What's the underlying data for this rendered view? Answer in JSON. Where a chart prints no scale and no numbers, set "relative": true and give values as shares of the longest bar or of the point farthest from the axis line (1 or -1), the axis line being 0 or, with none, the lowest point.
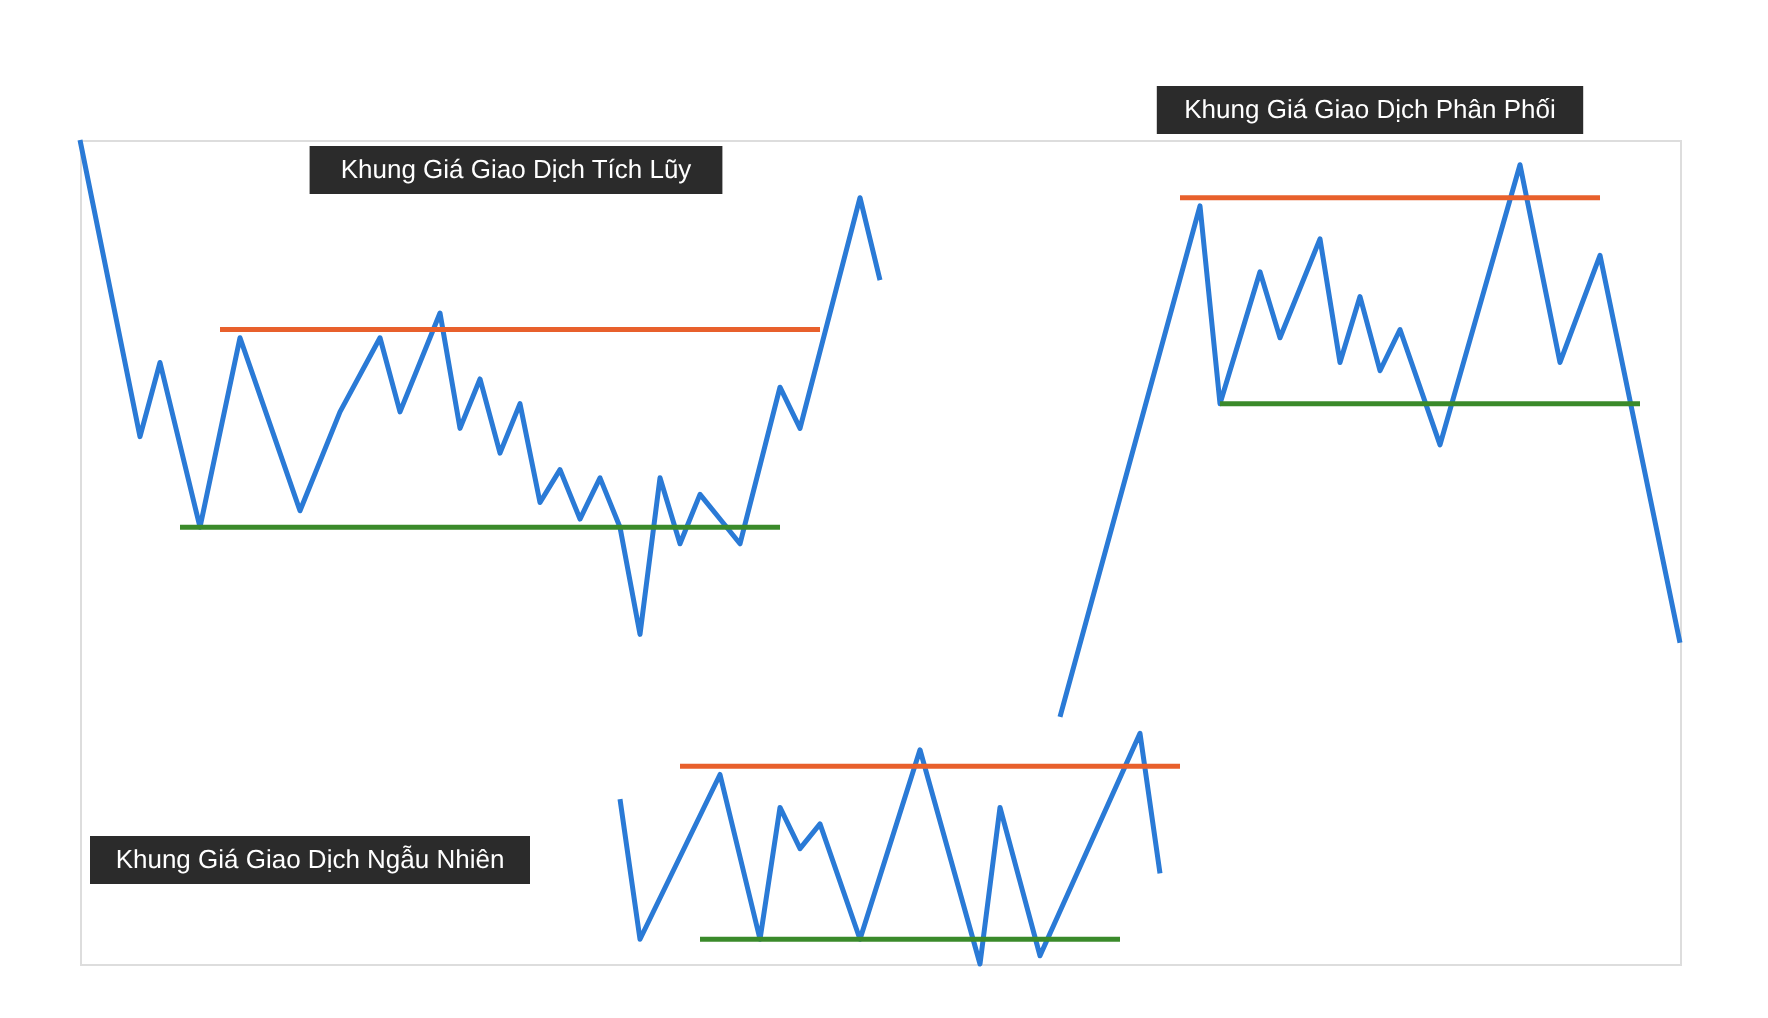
{
  "chart_data": {
    "type": "line",
    "relative": true,
    "categories": [
      null,
      null,
      null,
      null,
      null,
      null,
      null,
      null,
      null,
      null,
      null,
      null,
      null,
      null,
      null,
      null,
      null,
      null,
      null,
      null,
      null,
      null,
      null,
      null,
      null,
      null,
      null,
      null,
      null,
      null,
      null,
      null,
      null,
      null,
      null,
      null,
      null,
      null,
      null,
      null,
      null,
      null,
      null,
      null,
      null,
      null,
      null,
      null,
      null,
      null,
      null,
      null,
      null,
      null,
      null,
      null,
      null,
      null,
      null,
      null,
      null,
      null,
      null,
      null,
      null,
      null,
      null,
      null,
      null,
      null,
      null,
      null,
      null,
      null,
      null,
      null,
      null,
      null,
      null,
      null,
      null
    ],
    "annotations": [
      "Khung Giá Giao Dịch Tích Lũy",
      "Khung Giá Giao Dịch Phân Phối",
      "Khung Giá Giao Dịch Ngẫu Nhiên"
    ],
    "series": [
      {
        "color": "#2a7ad6",
        "values": [
          1.0,
          null,
          null,
          0.64,
          0.73,
          null,
          0.53,
          null,
          0.76,
          null,
          0.62,
          0.55,
          null,
          0.67,
          null,
          0.76,
          0.67,
          null,
          0.79,
          0.65,
          0.71,
          0.62,
          0.68,
          0.56,
          0.6,
          0.54,
          0.59,
          0.53,
          0.4,
          0.59,
          0.51,
          0.57,
          0.54,
          0.51,
          null,
          0.7,
          0.65,
          null,
          null,
          0.93,
          0.83,
          null,
          null,
          null,
          null,
          null,
          null,
          null,
          null,
          null,
          null,
          null,
          null,
          null,
          null,
          null,
          null,
          null,
          null,
          null,
          null,
          null,
          null,
          null,
          null,
          null,
          null,
          null,
          null,
          null,
          null,
          null,
          null,
          null,
          null,
          null,
          null,
          null,
          null,
          null,
          null
        ]
      },
      {
        "color": "#2a7ad6",
        "values": [
          null,
          null,
          null,
          null,
          null,
          null,
          null,
          null,
          null,
          null,
          null,
          null,
          null,
          null,
          null,
          null,
          null,
          null,
          null,
          null,
          null,
          null,
          null,
          null,
          null,
          null,
          null,
          null,
          null,
          null,
          null,
          null,
          null,
          null,
          null,
          null,
          null,
          null,
          null,
          null,
          null,
          null,
          null,
          null,
          null,
          null,
          null,
          null,
          null,
          0.3,
          null,
          null,
          null,
          null,
          null,
          null,
          0.92,
          0.68,
          null,
          0.84,
          0.76,
          null,
          0.88,
          0.73,
          0.81,
          0.72,
          0.77,
          null,
          0.63,
          null,
          null,
          null,
          0.97,
          null,
          0.73,
          null,
          0.86,
          null,
          null,
          null,
          0.39
        ]
      },
      {
        "color": "#2a7ad6",
        "values": [
          null,
          null,
          null,
          null,
          null,
          null,
          null,
          null,
          null,
          null,
          null,
          null,
          null,
          null,
          null,
          null,
          null,
          null,
          null,
          null,
          null,
          null,
          null,
          null,
          null,
          null,
          null,
          0.2,
          0.03,
          null,
          null,
          null,
          0.23,
          null,
          0.03,
          0.19,
          0.14,
          0.17,
          null,
          0.03,
          null,
          null,
          0.26,
          null,
          null,
          0.0,
          0.19,
          null,
          0.01,
          null,
          null,
          null,
          null,
          0.28,
          0.11,
          null,
          null,
          null,
          null,
          null,
          null,
          null,
          null,
          null,
          null,
          null,
          null,
          null,
          null,
          null,
          null,
          null,
          null,
          null,
          null,
          null,
          null,
          null,
          null,
          null,
          null
        ]
      },
      {
        "color": "#e8602c",
        "values": [
          null,
          null,
          null,
          null,
          null,
          null,
          null,
          0.77,
          null,
          null,
          null,
          null,
          null,
          null,
          null,
          null,
          null,
          null,
          null,
          null,
          null,
          null,
          null,
          null,
          null,
          null,
          null,
          null,
          null,
          null,
          null,
          null,
          null,
          null,
          null,
          null,
          null,
          0.77,
          null,
          null,
          null,
          null,
          null,
          null,
          null,
          null,
          null,
          null,
          null,
          null,
          null,
          null,
          null,
          null,
          null,
          null,
          null,
          null,
          null,
          null,
          null,
          null,
          null,
          null,
          null,
          null,
          null,
          null,
          null,
          null,
          null,
          null,
          null,
          null,
          null,
          null,
          null,
          null,
          null,
          null,
          null
        ]
      },
      {
        "color": "#3a8a2a",
        "values": [
          null,
          null,
          null,
          null,
          null,
          0.53,
          null,
          null,
          null,
          null,
          null,
          null,
          null,
          null,
          null,
          null,
          null,
          null,
          null,
          null,
          null,
          null,
          null,
          null,
          null,
          null,
          null,
          null,
          null,
          null,
          null,
          null,
          null,
          null,
          null,
          0.53,
          null,
          null,
          null,
          null,
          null,
          null,
          null,
          null,
          null,
          null,
          null,
          null,
          null,
          null,
          null,
          null,
          null,
          null,
          null,
          null,
          null,
          null,
          null,
          null,
          null,
          null,
          null,
          null,
          null,
          null,
          null,
          null,
          null,
          null,
          null,
          null,
          null,
          null,
          null,
          null,
          null,
          null,
          null,
          null,
          null
        ]
      },
      {
        "color": "#e8602c",
        "values": [
          null,
          null,
          null,
          null,
          null,
          null,
          null,
          null,
          null,
          null,
          null,
          null,
          null,
          null,
          null,
          null,
          null,
          null,
          null,
          null,
          null,
          null,
          null,
          null,
          null,
          null,
          null,
          null,
          null,
          null,
          null,
          null,
          null,
          null,
          null,
          null,
          null,
          null,
          null,
          null,
          null,
          null,
          null,
          null,
          null,
          null,
          null,
          null,
          null,
          null,
          null,
          null,
          null,
          null,
          null,
          0.93,
          null,
          null,
          null,
          null,
          null,
          null,
          null,
          null,
          null,
          null,
          null,
          null,
          null,
          null,
          null,
          null,
          null,
          null,
          null,
          null,
          0.93,
          null,
          null,
          null,
          null
        ]
      },
      {
        "color": "#3a8a2a",
        "values": [
          null,
          null,
          null,
          null,
          null,
          null,
          null,
          null,
          null,
          null,
          null,
          null,
          null,
          null,
          null,
          null,
          null,
          null,
          null,
          null,
          null,
          null,
          null,
          null,
          null,
          null,
          null,
          null,
          null,
          null,
          null,
          null,
          null,
          null,
          null,
          null,
          null,
          null,
          null,
          null,
          null,
          null,
          null,
          null,
          null,
          null,
          null,
          null,
          null,
          null,
          null,
          null,
          null,
          null,
          null,
          null,
          null,
          0.68,
          null,
          null,
          null,
          null,
          null,
          null,
          null,
          null,
          null,
          null,
          null,
          null,
          null,
          null,
          null,
          null,
          null,
          null,
          null,
          null,
          0.68,
          null,
          null
        ]
      },
      {
        "color": "#e8602c",
        "values": [
          null,
          null,
          null,
          null,
          null,
          null,
          null,
          null,
          null,
          null,
          null,
          null,
          null,
          null,
          null,
          null,
          null,
          null,
          null,
          null,
          null,
          null,
          null,
          null,
          null,
          null,
          null,
          null,
          null,
          null,
          0.24,
          null,
          null,
          null,
          null,
          null,
          null,
          null,
          null,
          null,
          null,
          null,
          null,
          null,
          null,
          null,
          null,
          null,
          null,
          null,
          null,
          null,
          null,
          null,
          null,
          0.24,
          null,
          null,
          null,
          null,
          null,
          null,
          null,
          null,
          null,
          null,
          null,
          null,
          null,
          null,
          null,
          null,
          null,
          null,
          null,
          null,
          null,
          null,
          null,
          null,
          null
        ]
      },
      {
        "color": "#3a8a2a",
        "values": [
          null,
          null,
          null,
          null,
          null,
          null,
          null,
          null,
          null,
          null,
          null,
          null,
          null,
          null,
          null,
          null,
          null,
          null,
          null,
          null,
          null,
          null,
          null,
          null,
          null,
          null,
          null,
          null,
          null,
          null,
          null,
          0.03,
          null,
          null,
          null,
          null,
          null,
          null,
          null,
          null,
          null,
          null,
          null,
          null,
          null,
          null,
          null,
          null,
          null,
          null,
          null,
          null,
          0.03,
          null,
          null,
          null,
          null,
          null,
          null,
          null,
          null,
          null,
          null,
          null,
          null,
          null,
          null,
          null,
          null,
          null,
          null,
          null,
          null,
          null,
          null,
          null,
          null,
          null,
          null,
          null,
          null
        ]
      }
    ]
  }
}
